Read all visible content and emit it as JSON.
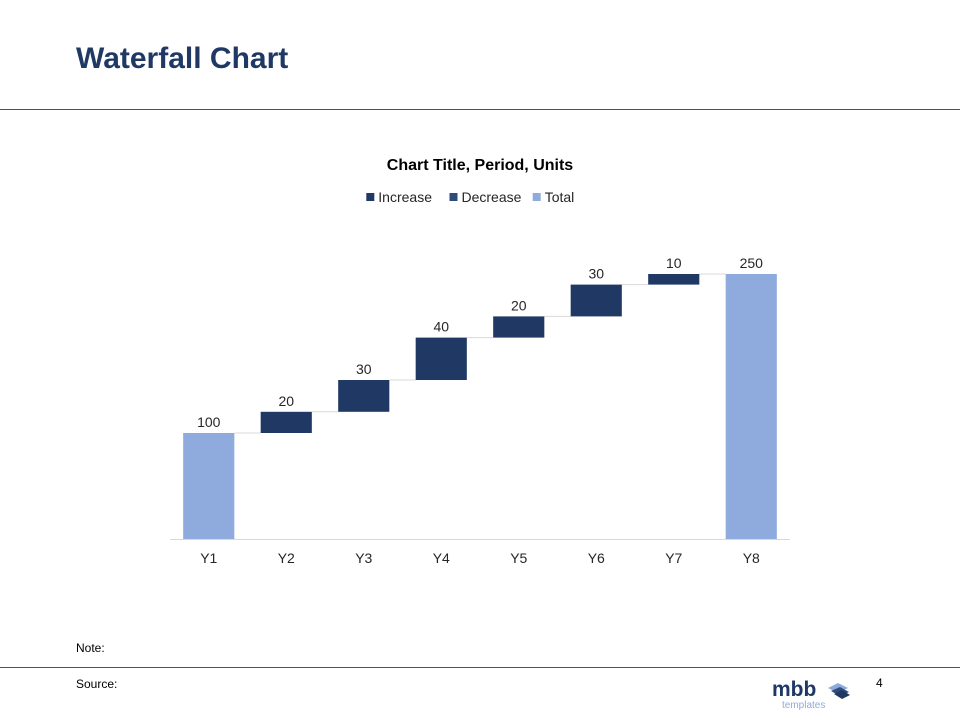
{
  "slide": {
    "title": "Waterfall Chart",
    "note_label": "Note:",
    "source_label": "Source:",
    "page_number": "4"
  },
  "logo": {
    "name": "mbb templates logo",
    "main_text": "mbb",
    "sub_text": "templates"
  },
  "chart_data": {
    "type": "bar",
    "subtype": "waterfall",
    "title": "Chart Title, Period, Units",
    "categories": [
      "Y1",
      "Y2",
      "Y3",
      "Y4",
      "Y5",
      "Y6",
      "Y7",
      "Y8"
    ],
    "values": [
      100,
      20,
      30,
      40,
      20,
      30,
      10,
      250
    ],
    "point_kinds": [
      "total",
      "increase",
      "increase",
      "increase",
      "increase",
      "increase",
      "increase",
      "total"
    ],
    "data_labels": [
      "100",
      "20",
      "30",
      "40",
      "20",
      "30",
      "10",
      "250"
    ],
    "legend": {
      "position": "top",
      "entries": [
        {
          "name": "Increase",
          "color": "#1f3864"
        },
        {
          "name": "Decrease",
          "color": "#2f4b7c"
        },
        {
          "name": "Total",
          "color": "#8faadc"
        }
      ]
    },
    "ylim": [
      0,
      250
    ],
    "grid": false,
    "xlabel": "",
    "ylabel": ""
  },
  "colors": {
    "title": "#1f3864",
    "increase": "#1f3864",
    "decrease": "#2f4b7c",
    "total": "#8faadc",
    "rule": "#44546a",
    "connector": "#d9d9d9"
  }
}
